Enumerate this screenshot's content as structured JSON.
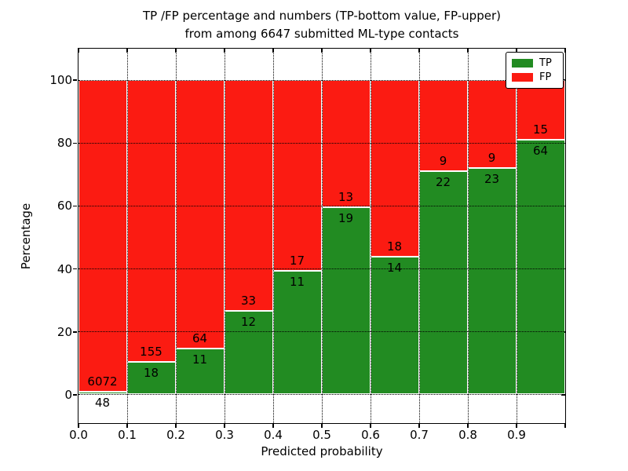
{
  "title": {
    "line1": "TP /FP percentage and numbers (TP-bottom value, FP-upper)",
    "line2": "from among 6647 submitted ML-type contacts"
  },
  "axes": {
    "xlabel": "Predicted probability",
    "ylabel": "Percentage"
  },
  "legend": {
    "position": "upper-right",
    "items": [
      {
        "label": "TP",
        "color": "#228b22"
      },
      {
        "label": "FP",
        "color": "#fb1b12"
      }
    ]
  },
  "colors": {
    "tp_green": "#228b22",
    "fp_red": "#fb1b12",
    "grid": "#000000",
    "background": "#ffffff"
  },
  "chart_data": {
    "type": "bar",
    "stacked": true,
    "title": "TP /FP percentage and numbers (TP-bottom value, FP-upper) from among 6647 submitted ML-type contacts",
    "xlabel": "Predicted probability",
    "ylabel": "Percentage",
    "total_contacts": 6647,
    "bins": [
      "0.0-0.1",
      "0.1-0.2",
      "0.2-0.3",
      "0.3-0.4",
      "0.4-0.5",
      "0.5-0.6",
      "0.6-0.7",
      "0.7-0.8",
      "0.8-0.9",
      "0.9-1.0"
    ],
    "x_tick_labels": [
      "0.0",
      "0.1",
      "0.2",
      "0.3",
      "0.4",
      "0.5",
      "0.6",
      "0.7",
      "0.8",
      "0.9"
    ],
    "y_ticks": [
      0,
      20,
      40,
      60,
      80,
      100
    ],
    "xlim": [
      0.0,
      1.0
    ],
    "ylim": [
      -9,
      110
    ],
    "grid": true,
    "legend_position": "upper right",
    "series": [
      {
        "name": "TP",
        "color": "#228b22",
        "counts": [
          48,
          18,
          11,
          12,
          11,
          19,
          14,
          22,
          23,
          64
        ]
      },
      {
        "name": "FP",
        "color": "#fb1b12",
        "counts": [
          6072,
          155,
          64,
          33,
          17,
          13,
          18,
          9,
          9,
          15
        ]
      }
    ],
    "tp_percent": [
      0.78,
      10.4,
      14.67,
      26.67,
      39.29,
      59.38,
      43.75,
      70.97,
      71.88,
      81.01
    ]
  }
}
